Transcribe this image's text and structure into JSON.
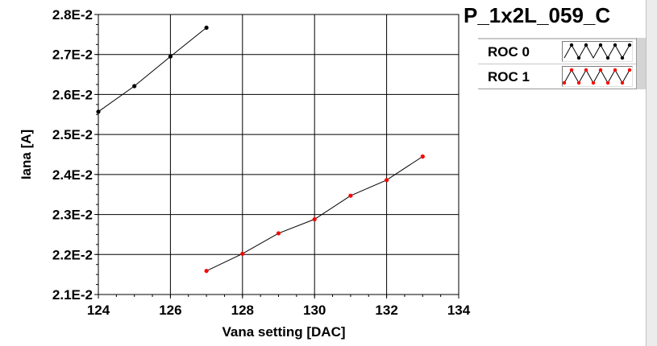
{
  "header": {
    "plot_title": "P_1x2L_059_C"
  },
  "legend": {
    "items": [
      {
        "label": "ROC 0",
        "color": "#000000"
      },
      {
        "label": "ROC 1",
        "color": "#ff0000"
      }
    ]
  },
  "chart_data": {
    "type": "line",
    "title": "P_1x2L_059_C",
    "xlabel": "Vana setting [DAC]",
    "ylabel": "Iana [A]",
    "xlim": [
      124,
      134
    ],
    "ylim": [
      0.021,
      0.028
    ],
    "x_ticks": [
      124,
      126,
      128,
      130,
      132,
      134
    ],
    "x_tick_labels": [
      "124",
      "126",
      "128",
      "130",
      "132",
      "134"
    ],
    "y_ticks": [
      0.021,
      0.022,
      0.023,
      0.024,
      0.025,
      0.026,
      0.027,
      0.028
    ],
    "y_tick_labels": [
      "2.1E-2",
      "2.2E-2",
      "2.3E-2",
      "2.4E-2",
      "2.5E-2",
      "2.6E-2",
      "2.7E-2",
      "2.8E-2"
    ],
    "grid": true,
    "legend_position": "top-right",
    "series": [
      {
        "name": "ROC 0",
        "color": "#000000",
        "x": [
          124,
          125,
          126,
          127
        ],
        "y": [
          0.02557,
          0.02621,
          0.02695,
          0.02767
        ]
      },
      {
        "name": "ROC 1",
        "color": "#ff0000",
        "x": [
          127,
          128,
          129,
          130,
          131,
          132,
          133
        ],
        "y": [
          0.02159,
          0.02202,
          0.02253,
          0.02288,
          0.02347,
          0.02386,
          0.02445
        ]
      }
    ]
  }
}
